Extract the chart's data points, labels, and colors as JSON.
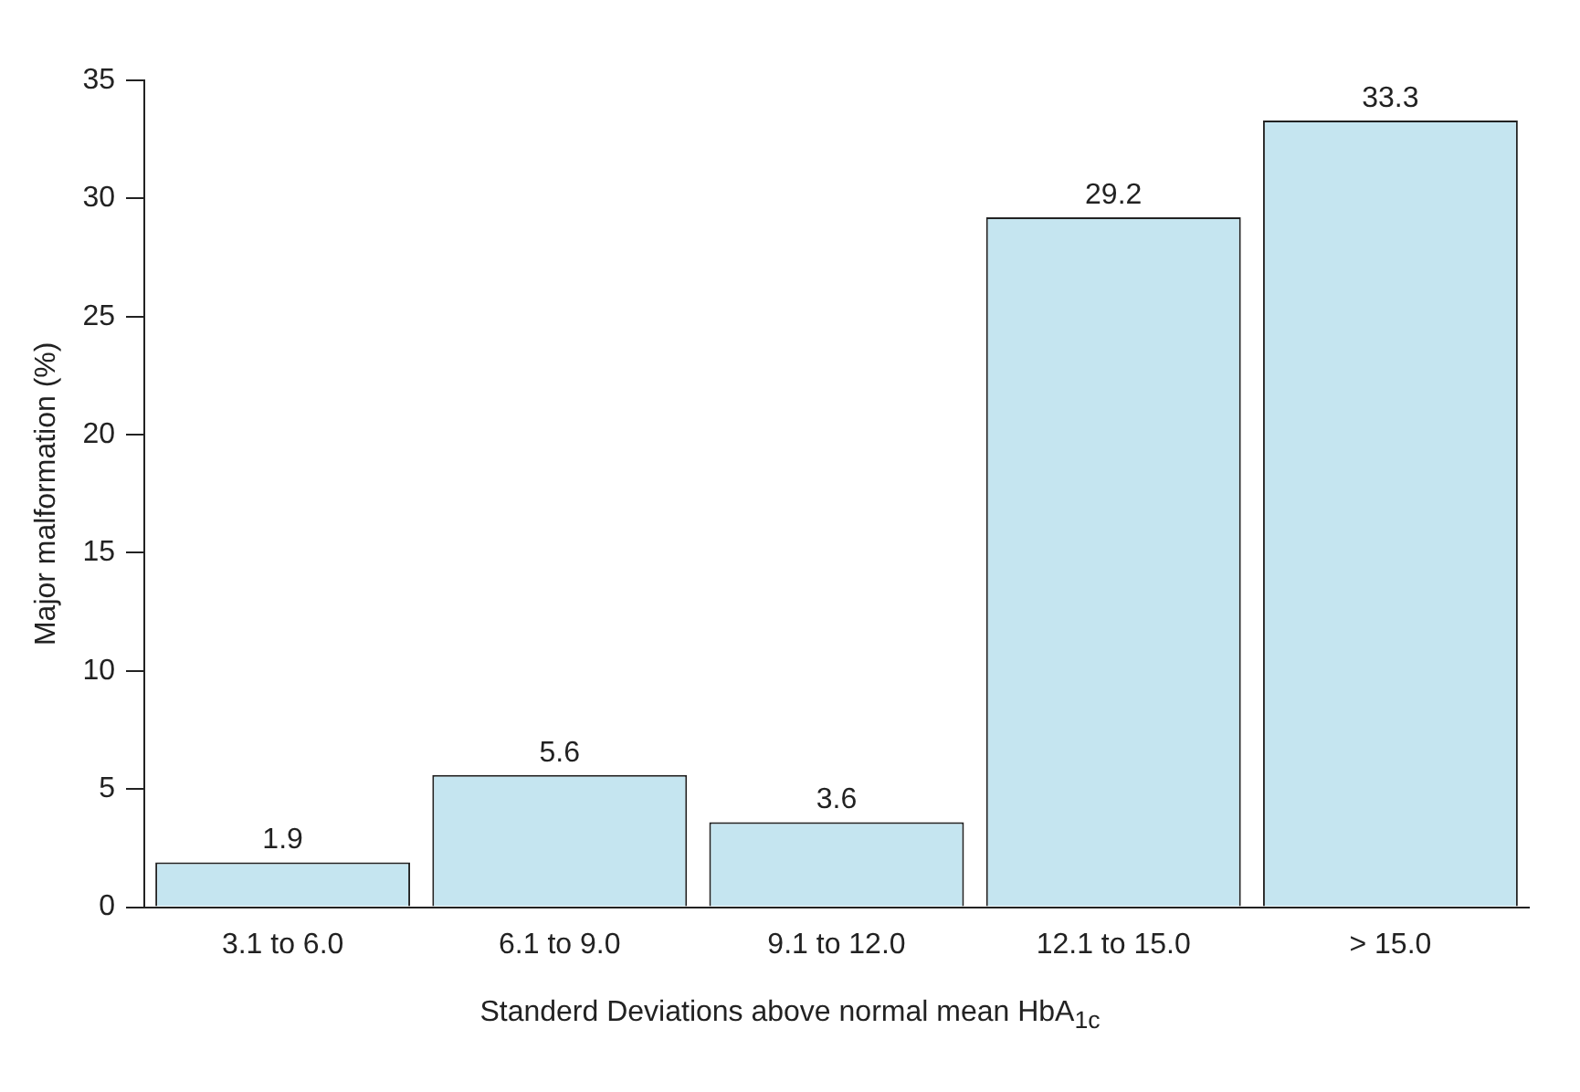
{
  "chart_data": {
    "type": "bar",
    "ylabel": "Major malformation (%)",
    "xlabel": "Standerd Deviations above normal mean HbA$_{1c}$",
    "categories": [
      "3.1 to 6.0",
      "6.1 to 9.0",
      "9.1 to 12.0",
      "12.1 to 15.0",
      "> 15.0"
    ],
    "values": [
      1.9,
      5.6,
      3.6,
      29.2,
      33.3
    ],
    "color": "#c5e5f0",
    "ylim": [
      0,
      35
    ],
    "yticks": [
      0,
      5,
      10,
      15,
      20,
      25,
      30,
      35
    ],
    "grid": false,
    "legend": false,
    "data_labels": true
  }
}
